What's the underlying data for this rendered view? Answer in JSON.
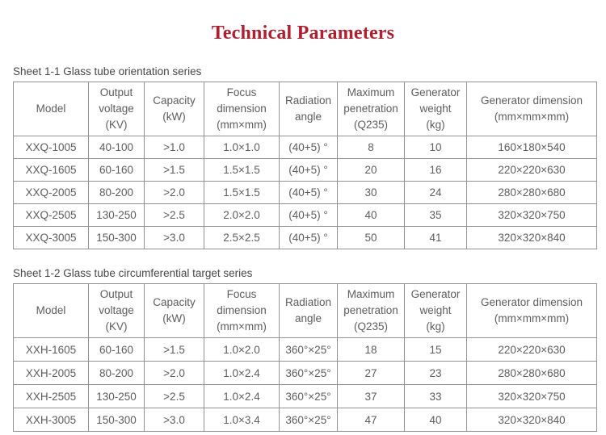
{
  "page": {
    "title": "Technical Parameters",
    "title_color": "#b01f2f",
    "border_color": "#939393",
    "text_color": "#5d5d5d"
  },
  "tables": [
    {
      "caption": "Sheet 1-1 Glass tube orientation series",
      "headers": [
        "Model",
        "Output\nvoltage\n(KV)",
        "Capacity\n(kW)",
        "Focus\ndimension\n(mm×mm)",
        "Radiation\nangle",
        "Maximum\npenetration\n(Q235)",
        "Generator\nweight\n(kg)",
        "Generator dimension\n(mm×mm×mm)"
      ],
      "rows": [
        [
          "XXQ-1005",
          "40-100",
          ">1.0",
          "1.0×1.0",
          "(40+5) °",
          "8",
          "10",
          "160×180×540"
        ],
        [
          "XXQ-1605",
          "60-160",
          ">1.5",
          "1.5×1.5",
          "(40+5) °",
          "20",
          "16",
          "220×220×630"
        ],
        [
          "XXQ-2005",
          "80-200",
          ">2.0",
          "1.5×1.5",
          "(40+5) °",
          "30",
          "24",
          "280×280×680"
        ],
        [
          "XXQ-2505",
          "130-250",
          ">2.5",
          "2.0×2.0",
          "(40+5) °",
          "40",
          "35",
          "320×320×750"
        ],
        [
          "XXQ-3005",
          "150-300",
          ">3.0",
          "2.5×2.5",
          "(40+5) °",
          "50",
          "41",
          "320×320×840"
        ]
      ]
    },
    {
      "caption": "Sheet 1-2 Glass tube circumferential target series",
      "headers": [
        "Model",
        "Output\nvoltage\n(KV)",
        "Capacity\n(kW)",
        "Focus\ndimension\n(mm×mm)",
        "Radiation\nangle",
        "Maximum\npenetration\n(Q235)",
        "Generator\nweight\n(kg)",
        "Generator dimension\n(mm×mm×mm)"
      ],
      "rows": [
        [
          "XXH-1605",
          "60-160",
          ">1.5",
          "1.0×2.0",
          "360°×25°",
          "18",
          "15",
          "220×220×630"
        ],
        [
          "XXH-2005",
          "80-200",
          ">2.0",
          "1.0×2.4",
          "360°×25°",
          "27",
          "23",
          "280×280×680"
        ],
        [
          "XXH-2505",
          "130-250",
          ">2.5",
          "1.0×2.4",
          "360°×25°",
          "37",
          "33",
          "320×320×750"
        ],
        [
          "XXH-3005",
          "150-300",
          ">3.0",
          "1.0×3.4",
          "360°×25°",
          "47",
          "40",
          "320×320×840"
        ]
      ]
    }
  ]
}
